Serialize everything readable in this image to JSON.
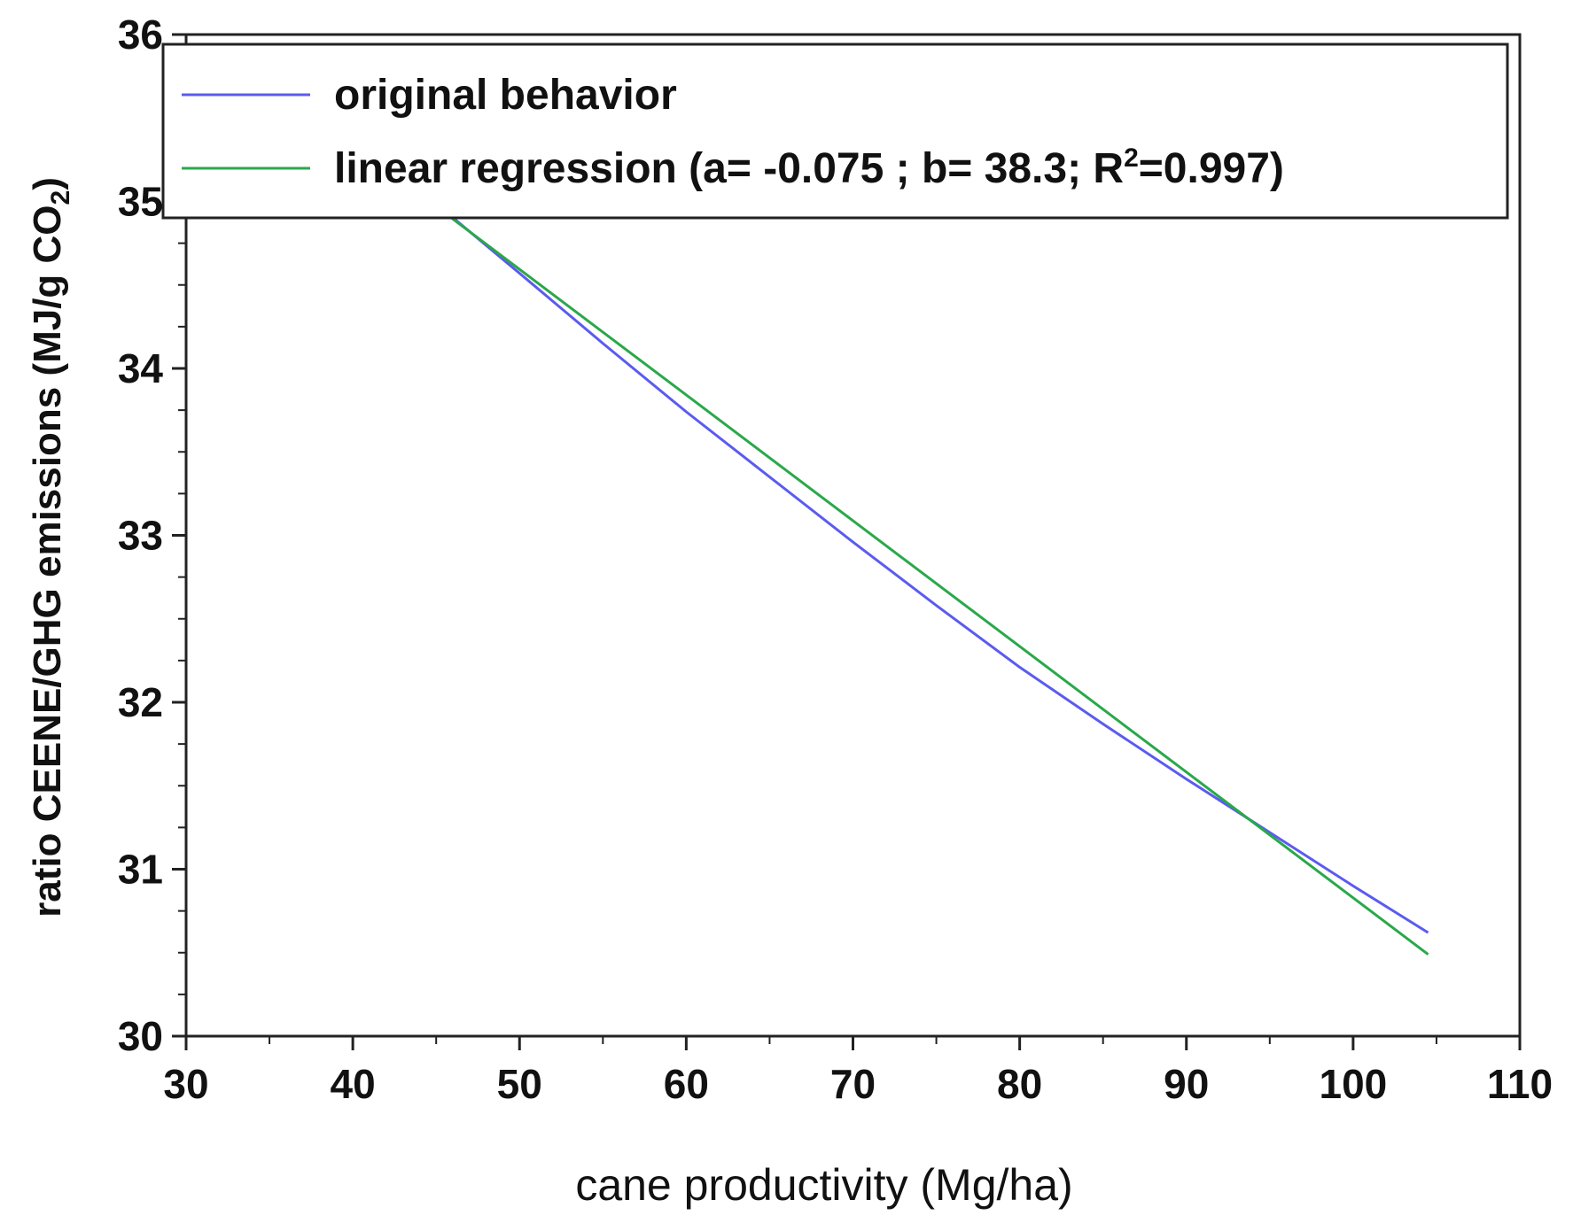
{
  "chart_data": {
    "type": "line",
    "xlabel": "cane productivity (Mg/ha)",
    "ylabel": "ratio CEENE/GHG emissions (MJ/g CO",
    "ylabel_subscript": "2",
    "ylabel_close": ")",
    "xlim": [
      30,
      110
    ],
    "ylim": [
      30,
      36
    ],
    "x_ticks": [
      30,
      40,
      50,
      60,
      70,
      80,
      90,
      100,
      110
    ],
    "y_ticks": [
      30,
      31,
      32,
      33,
      34,
      35,
      36
    ],
    "grid": false,
    "legend_position": "top",
    "series": [
      {
        "name": "original behavior",
        "legend_label": "original behavior",
        "color": "#5b5bf0",
        "x": [
          45.8,
          50,
          55,
          60,
          65,
          70,
          75,
          80,
          85,
          90,
          95,
          100,
          104.5
        ],
        "y": [
          34.92,
          34.57,
          34.15,
          33.74,
          33.35,
          32.96,
          32.58,
          32.21,
          31.87,
          31.54,
          31.22,
          30.9,
          30.62
        ]
      },
      {
        "name": "linear regression",
        "legend_label": "linear regression (a= -0.075 ; b= 38.3; R",
        "legend_sup": "2",
        "legend_tail": "=0.997)",
        "color": "#2aa84a",
        "a": -0.075,
        "b": 38.3,
        "r2": 0.997,
        "x": [
          45.8,
          104.5
        ],
        "y": [
          34.91,
          30.49
        ]
      }
    ]
  }
}
